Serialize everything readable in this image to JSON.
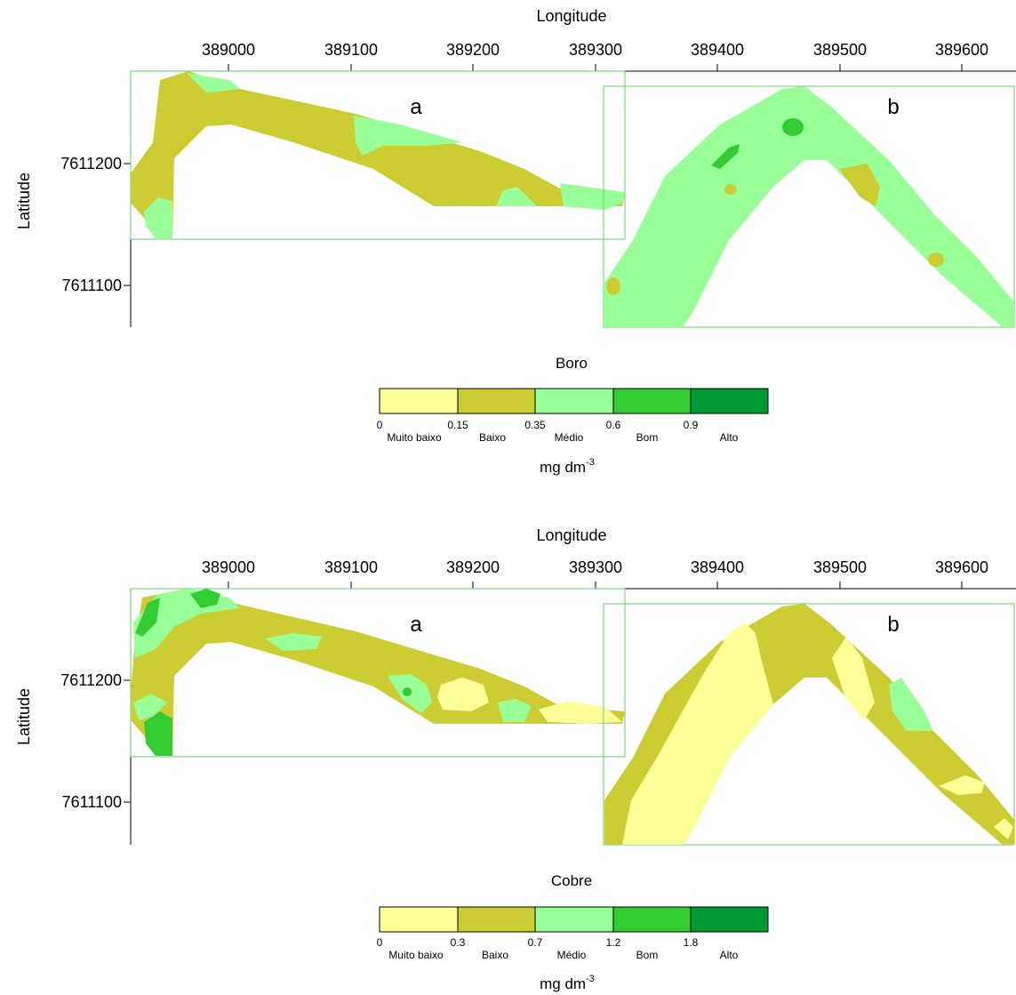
{
  "maps": [
    {
      "id": "boro",
      "x_axis_title": "Longitude",
      "y_axis_title": "Latitude",
      "x_ticks": [
        "389000",
        "389100",
        "389200",
        "389300",
        "389400",
        "389500",
        "389600"
      ],
      "y_ticks": [
        "7611200",
        "7611100"
      ],
      "panel_a": "a",
      "panel_b": "b",
      "legend": {
        "title": "Boro",
        "edges": [
          "0",
          "0.15",
          "0.35",
          "0.6",
          "0.9"
        ],
        "classes": [
          "Muito baixo",
          "Baixo",
          "Médio",
          "Bom",
          "Alto"
        ],
        "unit": "mg dm",
        "unit_exp": "-3"
      }
    },
    {
      "id": "cobre",
      "x_axis_title": "Longitude",
      "y_axis_title": "Latitude",
      "x_ticks": [
        "389000",
        "389100",
        "389200",
        "389300",
        "389400",
        "389500",
        "389600"
      ],
      "y_ticks": [
        "7611200",
        "7611100"
      ],
      "panel_a": "a",
      "panel_b": "b",
      "legend": {
        "title": "Cobre",
        "edges": [
          "0",
          "0.3",
          "0.7",
          "1.2",
          "1.8"
        ],
        "classes": [
          "Muito baixo",
          "Baixo",
          "Médio",
          "Bom",
          "Alto"
        ],
        "unit": "mg dm",
        "unit_exp": "-3"
      }
    }
  ],
  "colors": {
    "muito_baixo": "#ffff99",
    "baixo": "#cccc33",
    "medio": "#99ff99",
    "bom": "#33cc33",
    "alto": "#009933",
    "panel_border": "#66cc66"
  }
}
